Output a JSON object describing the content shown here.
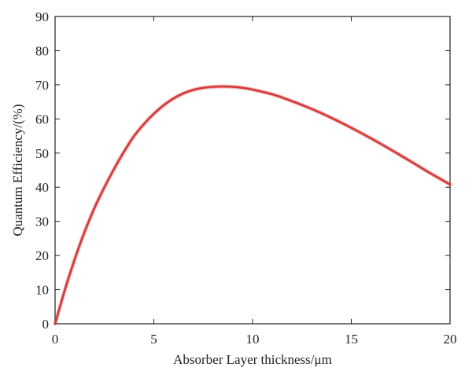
{
  "chart_data": {
    "type": "line",
    "title": "",
    "xlabel": "Absorber Layer thickness/μm",
    "ylabel": "Quantum Efficiency/(%)",
    "xlim": [
      0,
      20
    ],
    "ylim": [
      0,
      90
    ],
    "xticks": [
      0,
      5,
      10,
      15,
      20
    ],
    "yticks": [
      0,
      10,
      20,
      30,
      40,
      50,
      60,
      70,
      80,
      90
    ],
    "grid": false,
    "legend": "none",
    "series": [
      {
        "color": "#d43a3a",
        "x": [
          0,
          0.5,
          1,
          1.5,
          2,
          2.5,
          3,
          3.5,
          4,
          4.5,
          5,
          5.5,
          6,
          6.5,
          7,
          7.5,
          8,
          8.5,
          9,
          9.5,
          10,
          11,
          12,
          13,
          14,
          15,
          16,
          17,
          18,
          19,
          20
        ],
        "y": [
          0,
          10,
          19,
          27,
          34,
          40,
          45.5,
          50.5,
          55,
          58.5,
          61.5,
          64,
          66,
          67.5,
          68.5,
          69.1,
          69.4,
          69.5,
          69.4,
          69.1,
          68.6,
          67.2,
          65.2,
          62.9,
          60.3,
          57.4,
          54.3,
          51,
          47.6,
          44.1,
          40.8
        ]
      }
    ]
  }
}
